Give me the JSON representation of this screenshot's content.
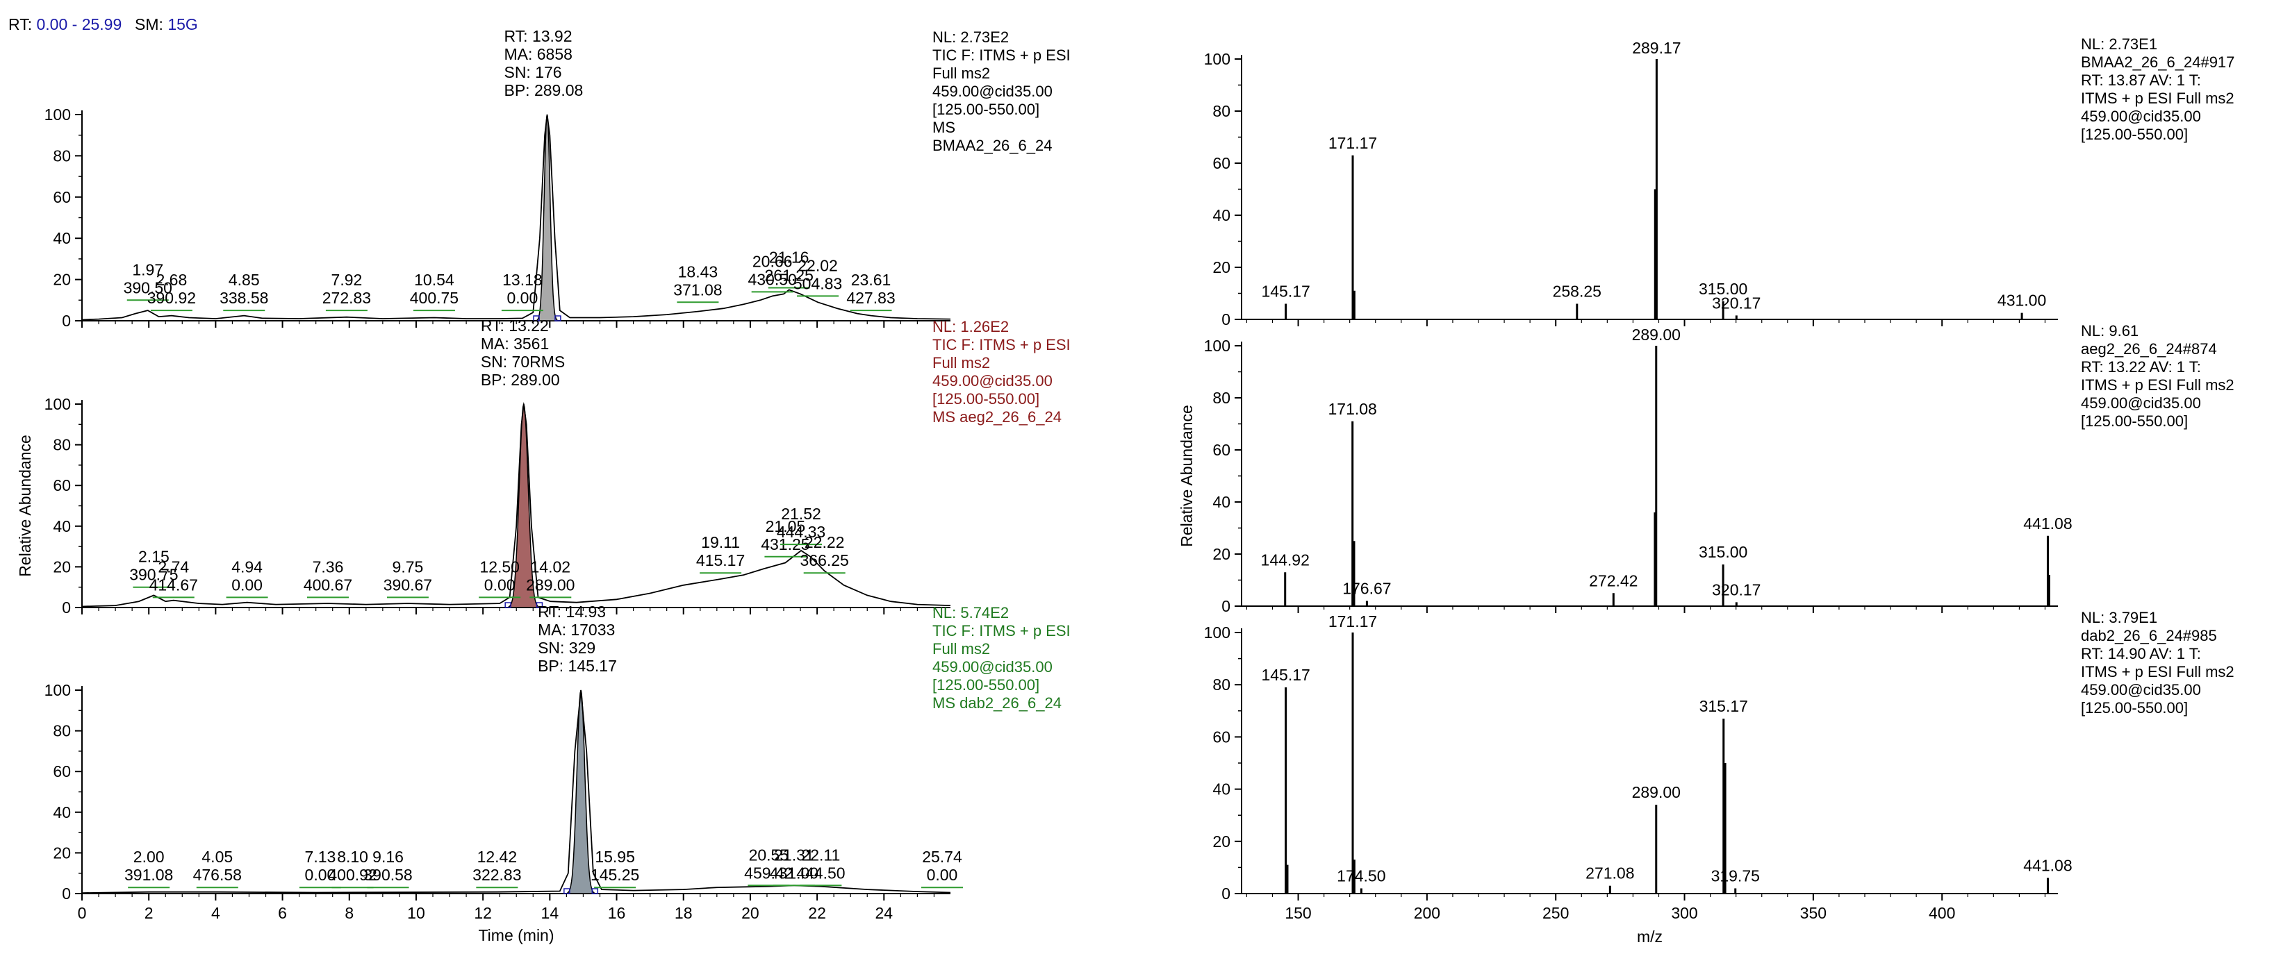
{
  "header": {
    "rt_label": "RT:",
    "rt_value": "0.00 - 25.99",
    "sm_label": "SM:",
    "sm_value": "15G",
    "color_rt": "#000000",
    "color_value": "#1a1aa8"
  },
  "chart_data": [
    {
      "type": "line",
      "panel": "chromatogram",
      "xlabel": "Time (min)",
      "ylabel": "Relative Abundance",
      "xlim": [
        0,
        25.99
      ],
      "ylim": [
        0,
        100
      ],
      "x_ticks": [
        0,
        2,
        4,
        6,
        8,
        10,
        12,
        14,
        16,
        18,
        20,
        22,
        24
      ],
      "y_ticks": [
        0,
        20,
        40,
        60,
        80,
        100
      ],
      "series": [
        {
          "info_color": "#000000",
          "info": [
            "NL: 2.73E2",
            "TIC F: ITMS + p ESI",
            "Full ms2",
            "459.00@cid35.00",
            "[125.00-550.00]",
            "MS",
            "BMAA2_26_6_24"
          ],
          "main_peak": {
            "rt": 13.92,
            "lines": [
              "RT: 13.92",
              "MA: 6858",
              "SN: 176",
              "BP: 289.08"
            ],
            "fill": "#a9a9a9",
            "width": 0.3
          },
          "peak_labels": [
            {
              "rt": 1.97,
              "text": [
                "1.97",
                "390.50"
              ],
              "y": 10
            },
            {
              "rt": 2.68,
              "text": [
                "2.68",
                "390.92"
              ],
              "y": 5
            },
            {
              "rt": 4.85,
              "text": [
                "4.85",
                "338.58"
              ],
              "y": 5
            },
            {
              "rt": 7.92,
              "text": [
                "7.92",
                "272.83"
              ],
              "y": 5
            },
            {
              "rt": 10.54,
              "text": [
                "10.54",
                "400.75"
              ],
              "y": 5
            },
            {
              "rt": 13.18,
              "text": [
                "13.18",
                "0.00"
              ],
              "y": 5
            },
            {
              "rt": 18.43,
              "text": [
                "18.43",
                "371.08"
              ],
              "y": 9
            },
            {
              "rt": 20.66,
              "text": [
                "20.66",
                "430.50"
              ],
              "y": 14
            },
            {
              "rt": 21.16,
              "text": [
                "21.16",
                "261.25"
              ],
              "y": 16
            },
            {
              "rt": 22.02,
              "text": [
                "22.02",
                "504.83"
              ],
              "y": 12
            },
            {
              "rt": 23.61,
              "text": [
                "23.61",
                "427.83"
              ],
              "y": 5
            }
          ],
          "trace": [
            [
              0,
              0.5
            ],
            [
              0.5,
              0.8
            ],
            [
              1.2,
              1.5
            ],
            [
              1.6,
              3.5
            ],
            [
              1.97,
              5
            ],
            [
              2.3,
              2
            ],
            [
              2.68,
              2.5
            ],
            [
              3.2,
              1.5
            ],
            [
              4,
              1
            ],
            [
              4.85,
              2.5
            ],
            [
              5.4,
              1.2
            ],
            [
              6.5,
              1
            ],
            [
              7.92,
              1.8
            ],
            [
              9,
              1
            ],
            [
              10.54,
              1.5
            ],
            [
              11.5,
              1
            ],
            [
              12.5,
              1
            ],
            [
              13.18,
              1.2
            ],
            [
              13.5,
              4
            ],
            [
              13.7,
              40
            ],
            [
              13.85,
              90
            ],
            [
              13.92,
              100
            ],
            [
              14.0,
              90
            ],
            [
              14.15,
              40
            ],
            [
              14.3,
              5
            ],
            [
              14.6,
              1.5
            ],
            [
              15.5,
              1.5
            ],
            [
              16.5,
              2
            ],
            [
              17.5,
              3
            ],
            [
              18.43,
              4.5
            ],
            [
              19.2,
              6
            ],
            [
              19.8,
              8
            ],
            [
              20.3,
              10
            ],
            [
              20.66,
              12
            ],
            [
              21.0,
              13
            ],
            [
              21.16,
              15
            ],
            [
              21.5,
              13
            ],
            [
              22.02,
              9
            ],
            [
              22.6,
              6
            ],
            [
              23.2,
              3.5
            ],
            [
              23.61,
              2.5
            ],
            [
              24.2,
              1.5
            ],
            [
              25,
              1
            ],
            [
              25.99,
              0.8
            ]
          ]
        },
        {
          "info_color": "#8b1a1a",
          "info": [
            "NL: 1.26E2",
            "TIC F: ITMS + p ESI",
            "Full ms2",
            "459.00@cid35.00",
            "[125.00-550.00]",
            "MS aeg2_26_6_24"
          ],
          "main_peak": {
            "rt": 13.22,
            "lines": [
              "RT: 13.22",
              "MA: 3561",
              "SN: 70RMS",
              "BP: 289.00"
            ],
            "fill": "#a66464",
            "width": 0.45
          },
          "peak_labels": [
            {
              "rt": 2.15,
              "text": [
                "2.15",
                "390.75"
              ],
              "y": 10
            },
            {
              "rt": 2.74,
              "text": [
                "2.74",
                "414.67"
              ],
              "y": 5
            },
            {
              "rt": 4.94,
              "text": [
                "4.94",
                "0.00"
              ],
              "y": 5
            },
            {
              "rt": 7.36,
              "text": [
                "7.36",
                "400.67"
              ],
              "y": 5
            },
            {
              "rt": 9.75,
              "text": [
                "9.75",
                "390.67"
              ],
              "y": 5
            },
            {
              "rt": 12.5,
              "text": [
                "12.50",
                "0.00"
              ],
              "y": 5
            },
            {
              "rt": 14.02,
              "text": [
                "14.02",
                "289.00"
              ],
              "y": 5
            },
            {
              "rt": 19.11,
              "text": [
                "19.11",
                "415.17"
              ],
              "y": 17
            },
            {
              "rt": 21.05,
              "text": [
                "21.05",
                "431.25"
              ],
              "y": 25
            },
            {
              "rt": 21.52,
              "text": [
                "21.52",
                "444.33"
              ],
              "y": 31
            },
            {
              "rt": 22.22,
              "text": [
                "22.22",
                "366.25"
              ],
              "y": 17
            }
          ],
          "trace": [
            [
              0,
              0.5
            ],
            [
              1,
              1
            ],
            [
              1.7,
              3
            ],
            [
              2.15,
              6
            ],
            [
              2.5,
              3
            ],
            [
              2.74,
              3.5
            ],
            [
              3.5,
              2
            ],
            [
              4.2,
              1.5
            ],
            [
              4.94,
              2.5
            ],
            [
              5.8,
              1.5
            ],
            [
              7.36,
              2
            ],
            [
              8.5,
              1.5
            ],
            [
              9.75,
              2
            ],
            [
              11,
              1.5
            ],
            [
              12.5,
              2
            ],
            [
              12.8,
              5
            ],
            [
              13.0,
              40
            ],
            [
              13.15,
              90
            ],
            [
              13.22,
              100
            ],
            [
              13.3,
              90
            ],
            [
              13.45,
              40
            ],
            [
              13.65,
              5
            ],
            [
              14.02,
              3
            ],
            [
              14.8,
              2.5
            ],
            [
              16,
              4
            ],
            [
              17,
              7
            ],
            [
              18,
              11
            ],
            [
              19.11,
              14
            ],
            [
              19.8,
              16
            ],
            [
              20.4,
              19
            ],
            [
              21.05,
              22
            ],
            [
              21.52,
              28
            ],
            [
              21.8,
              25
            ],
            [
              22.22,
              18
            ],
            [
              22.8,
              11
            ],
            [
              23.5,
              6
            ],
            [
              24.2,
              3
            ],
            [
              25,
              1.5
            ],
            [
              25.99,
              1
            ]
          ]
        },
        {
          "info_color": "#1f7a1f",
          "info": [
            "NL: 5.74E2",
            "TIC F: ITMS + p ESI",
            "Full ms2",
            "459.00@cid35.00",
            "[125.00-550.00]",
            "MS dab2_26_6_24"
          ],
          "main_peak": {
            "rt": 14.93,
            "lines": [
              "RT: 14.93",
              "MA: 17033",
              "SN: 329",
              "BP: 145.17"
            ],
            "fill": "#8f9aa3",
            "width": 0.4
          },
          "peak_labels": [
            {
              "rt": 2.0,
              "text": [
                "2.00",
                "391.08"
              ],
              "y": 3
            },
            {
              "rt": 4.05,
              "text": [
                "4.05",
                "476.58"
              ],
              "y": 3
            },
            {
              "rt": 7.13,
              "text": [
                "7.13",
                "0.00"
              ],
              "y": 3
            },
            {
              "rt": 8.1,
              "text": [
                "8.10",
                "400.92"
              ],
              "y": 3
            },
            {
              "rt": 9.16,
              "text": [
                "9.16",
                "390.58"
              ],
              "y": 3
            },
            {
              "rt": 12.42,
              "text": [
                "12.42",
                "322.83"
              ],
              "y": 3
            },
            {
              "rt": 15.95,
              "text": [
                "15.95",
                "145.25"
              ],
              "y": 3
            },
            {
              "rt": 20.55,
              "text": [
                "20.55",
                "459.42"
              ],
              "y": 4
            },
            {
              "rt": 21.31,
              "text": [
                "21.31",
                "431.00"
              ],
              "y": 4
            },
            {
              "rt": 22.11,
              "text": [
                "22.11",
                "444.50"
              ],
              "y": 4
            },
            {
              "rt": 25.74,
              "text": [
                "25.74",
                "0.00"
              ],
              "y": 3
            }
          ],
          "trace": [
            [
              0,
              0.3
            ],
            [
              2,
              0.8
            ],
            [
              4.05,
              0.8
            ],
            [
              7,
              0.5
            ],
            [
              9,
              0.6
            ],
            [
              12.42,
              0.8
            ],
            [
              14.3,
              1.2
            ],
            [
              14.55,
              10
            ],
            [
              14.75,
              70
            ],
            [
              14.93,
              100
            ],
            [
              15.1,
              70
            ],
            [
              15.3,
              10
            ],
            [
              15.55,
              2
            ],
            [
              16.5,
              1.5
            ],
            [
              18,
              2
            ],
            [
              19,
              3
            ],
            [
              20.55,
              3.5
            ],
            [
              21.31,
              4
            ],
            [
              22.11,
              3.5
            ],
            [
              23.5,
              2
            ],
            [
              25,
              1
            ],
            [
              25.99,
              0.5
            ]
          ]
        }
      ]
    },
    {
      "type": "bar",
      "panel": "mass-spectrum",
      "xlabel": "m/z",
      "ylabel": "Relative Abundance",
      "xlim": [
        128,
        445
      ],
      "ylim": [
        0,
        100
      ],
      "x_ticks": [
        150,
        200,
        250,
        300,
        350,
        400
      ],
      "y_ticks": [
        0,
        20,
        40,
        60,
        80,
        100
      ],
      "series": [
        {
          "info": [
            "NL: 2.73E1",
            "BMAA2_26_6_24#917",
            "RT: 13.87  AV: 1 T:",
            "ITMS + p ESI Full ms2",
            "459.00@cid35.00",
            "[125.00-550.00]"
          ],
          "peaks": [
            {
              "mz": 145.17,
              "value": 6,
              "label": "145.17"
            },
            {
              "mz": 171.17,
              "value": 63,
              "label": "171.17"
            },
            {
              "mz": 171.8,
              "value": 11,
              "label": ""
            },
            {
              "mz": 258.25,
              "value": 6,
              "label": "258.25"
            },
            {
              "mz": 289.17,
              "value": 100,
              "label": "289.17"
            },
            {
              "mz": 288.6,
              "value": 50,
              "label": ""
            },
            {
              "mz": 315.0,
              "value": 7,
              "label": "315.00"
            },
            {
              "mz": 320.17,
              "value": 1.5,
              "label": "320.17"
            },
            {
              "mz": 431.0,
              "value": 2.5,
              "label": "431.00"
            }
          ]
        },
        {
          "info": [
            "NL: 9.61",
            "aeg2_26_6_24#874",
            "RT: 13.22  AV: 1 T:",
            "ITMS + p ESI Full ms2",
            "459.00@cid35.00",
            "[125.00-550.00]"
          ],
          "peaks": [
            {
              "mz": 144.92,
              "value": 13,
              "label": "144.92"
            },
            {
              "mz": 171.08,
              "value": 71,
              "label": "171.08"
            },
            {
              "mz": 171.7,
              "value": 25,
              "label": ""
            },
            {
              "mz": 176.67,
              "value": 2,
              "label": "176.67"
            },
            {
              "mz": 272.42,
              "value": 5,
              "label": "272.42"
            },
            {
              "mz": 289.0,
              "value": 100,
              "label": "289.00"
            },
            {
              "mz": 288.5,
              "value": 36,
              "label": ""
            },
            {
              "mz": 315.0,
              "value": 16,
              "label": "315.00"
            },
            {
              "mz": 320.17,
              "value": 1.5,
              "label": "320.17"
            },
            {
              "mz": 441.08,
              "value": 27,
              "label": "441.08"
            },
            {
              "mz": 441.6,
              "value": 12,
              "label": ""
            }
          ]
        },
        {
          "info": [
            "NL: 3.79E1",
            "dab2_26_6_24#985",
            "RT: 14.90  AV: 1 T:",
            "ITMS + p ESI Full ms2",
            "459.00@cid35.00",
            "[125.00-550.00]"
          ],
          "peaks": [
            {
              "mz": 145.17,
              "value": 79,
              "label": "145.17"
            },
            {
              "mz": 145.8,
              "value": 11,
              "label": ""
            },
            {
              "mz": 171.17,
              "value": 100,
              "label": "171.17"
            },
            {
              "mz": 171.8,
              "value": 13,
              "label": ""
            },
            {
              "mz": 174.5,
              "value": 2,
              "label": "174.50"
            },
            {
              "mz": 271.08,
              "value": 3,
              "label": "271.08"
            },
            {
              "mz": 289.0,
              "value": 34,
              "label": "289.00"
            },
            {
              "mz": 315.17,
              "value": 67,
              "label": "315.17"
            },
            {
              "mz": 315.8,
              "value": 50,
              "label": ""
            },
            {
              "mz": 319.75,
              "value": 2,
              "label": "319.75"
            },
            {
              "mz": 441.08,
              "value": 6,
              "label": "441.08"
            }
          ]
        }
      ]
    }
  ]
}
